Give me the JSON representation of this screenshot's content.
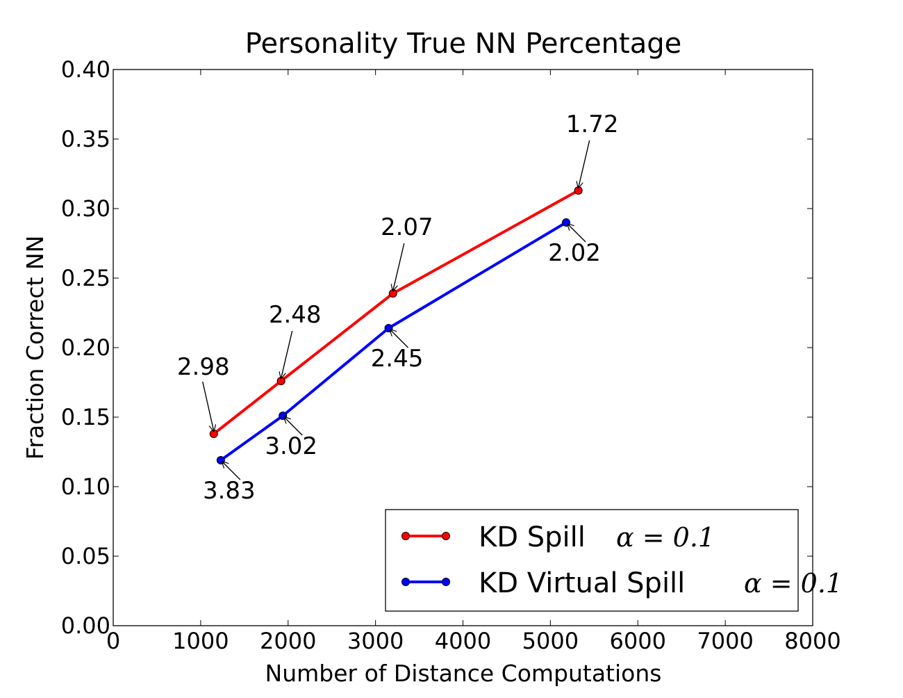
{
  "chart_data": {
    "type": "line",
    "title": "Personality True NN Percentage",
    "xlabel": "Number of Distance Computations",
    "ylabel": "Fraction Correct NN",
    "xlim": [
      0,
      8000
    ],
    "ylim": [
      0.0,
      0.4
    ],
    "xticks": [
      0,
      1000,
      2000,
      3000,
      4000,
      5000,
      6000,
      7000,
      8000
    ],
    "yticks": [
      0.0,
      0.05,
      0.1,
      0.15,
      0.2,
      0.25,
      0.3,
      0.35,
      0.4
    ],
    "xtick_labels": [
      "0",
      "1000",
      "2000",
      "3000",
      "4000",
      "5000",
      "6000",
      "7000",
      "8000"
    ],
    "ytick_labels": [
      "0.00",
      "0.05",
      "0.10",
      "0.15",
      "0.20",
      "0.25",
      "0.30",
      "0.35",
      "0.40"
    ],
    "grid": false,
    "legend_position": "bottom-right",
    "series": [
      {
        "name": "KD Spill",
        "name_math": "α = 0.1",
        "color": "#ff0000",
        "marker": "circle",
        "x": [
          1150,
          1920,
          3200,
          5320
        ],
        "y": [
          0.138,
          0.176,
          0.239,
          0.313
        ],
        "annotations": [
          "2.98",
          "2.48",
          "2.07",
          "1.72"
        ]
      },
      {
        "name": "KD Virtual Spill",
        "name_math": "α = 0.1",
        "color": "#0000ff",
        "marker": "circle",
        "x": [
          1230,
          1940,
          3150,
          5180
        ],
        "y": [
          0.119,
          0.151,
          0.214,
          0.29
        ],
        "annotations": [
          "3.83",
          "3.02",
          "2.45",
          "2.02"
        ]
      }
    ]
  }
}
